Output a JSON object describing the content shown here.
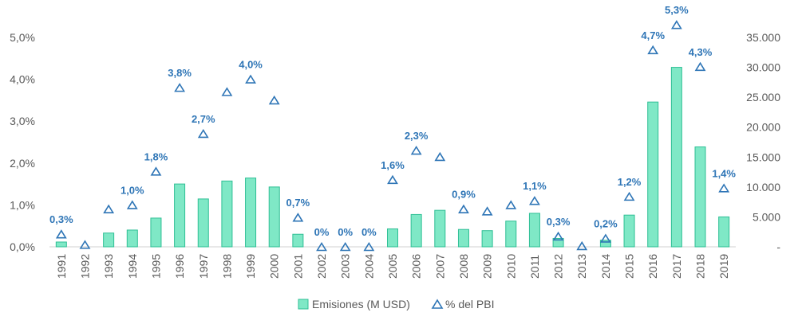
{
  "chart_data": {
    "type": "bar",
    "title": "",
    "categories": [
      "1991",
      "1992",
      "1993",
      "1994",
      "1995",
      "1996",
      "1997",
      "1998",
      "1999",
      "2000",
      "2001",
      "2002",
      "2003",
      "2004",
      "2005",
      "2006",
      "2007",
      "2008",
      "2009",
      "2010",
      "2011",
      "2012",
      "2013",
      "2014",
      "2015",
      "2016",
      "2017",
      "2018",
      "2019"
    ],
    "series": [
      {
        "name": "Emisiones (M USD)",
        "type": "bar",
        "axis": "right",
        "color": "#7fe8c6",
        "stroke": "#2fbf95",
        "values": [
          800,
          0,
          2300,
          2800,
          4800,
          10500,
          8000,
          11000,
          11500,
          10000,
          2100,
          0,
          0,
          0,
          3000,
          5400,
          6100,
          2900,
          2700,
          4300,
          5600,
          1400,
          0,
          1100,
          5300,
          24200,
          30000,
          16700,
          5000
        ]
      },
      {
        "name": "% del PBI",
        "type": "scatter",
        "axis": "left",
        "marker": "triangle",
        "color": "#2e75b6",
        "values": [
          0.3,
          0.05,
          0.9,
          1.0,
          1.8,
          3.8,
          2.7,
          3.7,
          4.0,
          3.5,
          0.7,
          0.0,
          0.0,
          0.0,
          1.6,
          2.3,
          2.15,
          0.9,
          0.85,
          1.0,
          1.1,
          0.25,
          0.02,
          0.2,
          1.2,
          4.7,
          5.3,
          4.3,
          1.4
        ],
        "labels": [
          "0,3%",
          "",
          "",
          "1,0%",
          "1,8%",
          "3,8%",
          "2,7%",
          "",
          "4,0%",
          "",
          "0,7%",
          "0%",
          "0%",
          "0%",
          "1,6%",
          "2,3%",
          "",
          "0,9%",
          "",
          "",
          "1,1%",
          "0,3%",
          "",
          "0,2%",
          "1,2%",
          "4,7%",
          "5,3%",
          "4,3%",
          "1,4%"
        ]
      }
    ],
    "y_left": {
      "min": 0,
      "max": 5,
      "ticks": [
        "0,0%",
        "1,0%",
        "2,0%",
        "3,0%",
        "4,0%",
        "5,0%"
      ]
    },
    "y_right": {
      "min": 0,
      "max": 35000,
      "ticks": [
        "-",
        "5.000",
        "10.000",
        "15.000",
        "20.000",
        "25.000",
        "30.000",
        "35.000"
      ]
    },
    "legend": [
      "Emisiones (M USD)",
      "% del PBI"
    ],
    "legend_position": "bottom",
    "grid": false
  }
}
